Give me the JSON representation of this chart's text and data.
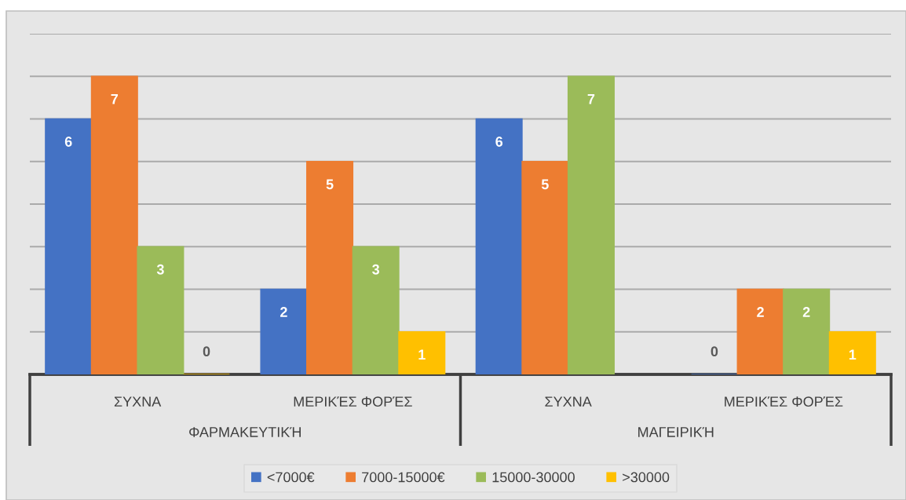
{
  "chart_data": {
    "type": "bar",
    "categories": [
      "ΣΥΧΝΑ",
      "ΜΕΡΙΚΈΣ ΦΟΡΈΣ",
      "ΣΥΧΝΑ",
      "ΜΕΡΙΚΈΣ ΦΟΡΈΣ"
    ],
    "series": [
      {
        "name": "<7000€",
        "color": "#4472c4",
        "values": [
          6,
          2,
          6,
          0
        ]
      },
      {
        "name": "7000-15000€",
        "color": "#ed7d31",
        "values": [
          7,
          5,
          5,
          2
        ]
      },
      {
        "name": "15000-30000",
        "color": "#9bbb59",
        "values": [
          3,
          3,
          7,
          2
        ]
      },
      {
        "name": ">30000",
        "color": "#ffc000",
        "values": [
          0,
          1,
          null,
          1
        ]
      }
    ],
    "annotations": [
      "ΦΑΡΜΑΚΕΥΤΙΚΉ",
      "ΜΑΓΕΙΡΙΚΉ"
    ],
    "ylim": [
      0,
      8
    ],
    "yticks": [
      {
        "value": 0,
        "label": null
      },
      {
        "value": 1,
        "label": null
      },
      {
        "value": 2,
        "label": null
      },
      {
        "value": 3,
        "label": null
      },
      {
        "value": 4,
        "label": null
      },
      {
        "value": 5,
        "label": null
      },
      {
        "value": 6,
        "label": null
      },
      {
        "value": 7,
        "label": null
      },
      {
        "value": 8,
        "label": null
      }
    ],
    "tick_labels": "x",
    "grid": "y",
    "legend": "bottom",
    "data_labels": true
  }
}
